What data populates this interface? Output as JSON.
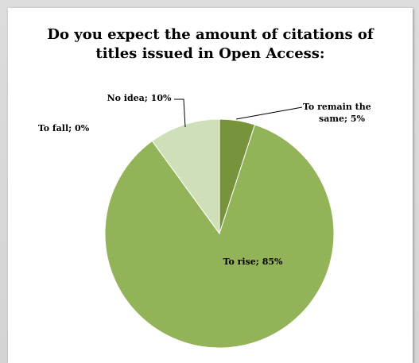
{
  "chart_data": {
    "type": "pie",
    "title": "Do you expect the amount of citations of titles issued in Open Access:",
    "slices": [
      {
        "label": "To remain the same",
        "value": 5,
        "display": "To remain the same; 5%",
        "color": "#77933c"
      },
      {
        "label": "To rise",
        "value": 85,
        "display": "To rise; 85%",
        "color": "#93b358"
      },
      {
        "label": "To fall",
        "value": 0,
        "display": "To fall; 0%",
        "color": "#b8cf8d"
      },
      {
        "label": "No idea",
        "value": 10,
        "display": "No idea; 10%",
        "color": "#cfdfb8"
      }
    ],
    "legend": "none"
  }
}
